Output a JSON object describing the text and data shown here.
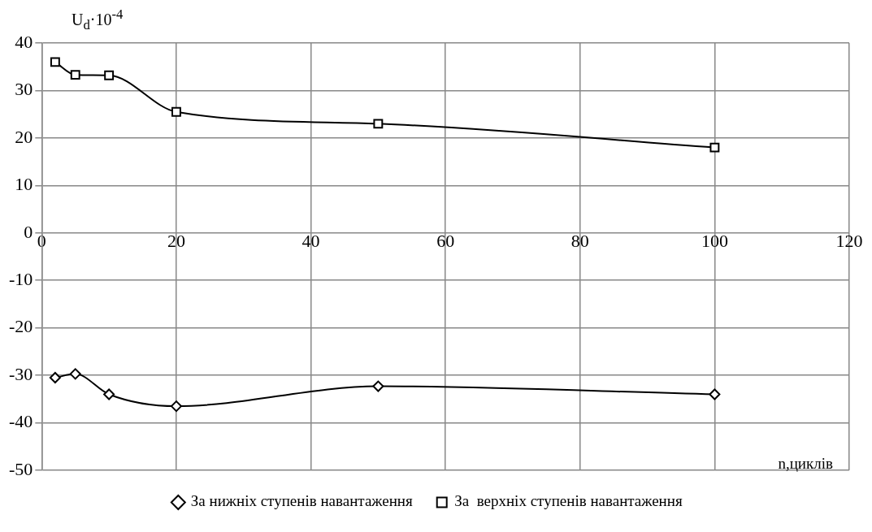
{
  "chart_data": {
    "type": "line",
    "xlabel": "n,циклів",
    "ylabel": "U$_{d}$·10$^{-4}$",
    "xlim": [
      0,
      120
    ],
    "xticks": [
      0,
      20,
      40,
      60,
      80,
      100,
      120
    ],
    "ylim": [
      -50,
      40
    ],
    "yticks": [
      -50,
      -40,
      -30,
      -20,
      -10,
      0,
      10,
      20,
      30,
      40
    ],
    "grid": true,
    "legend": "bottom",
    "x": [
      2,
      5,
      10,
      20,
      50,
      100
    ],
    "series": [
      {
        "name": "За нижніх ступенів навантаження",
        "color": "#000000",
        "marker": "diamond",
        "values": [
          -30.5,
          -29.7,
          -34,
          -36.5,
          -32.3,
          -34
        ]
      },
      {
        "name": "За  верхніх ступенів навантаження",
        "color": "#000000",
        "marker": "square",
        "values": [
          36,
          33.3,
          33.2,
          25.5,
          23,
          18
        ]
      }
    ]
  }
}
